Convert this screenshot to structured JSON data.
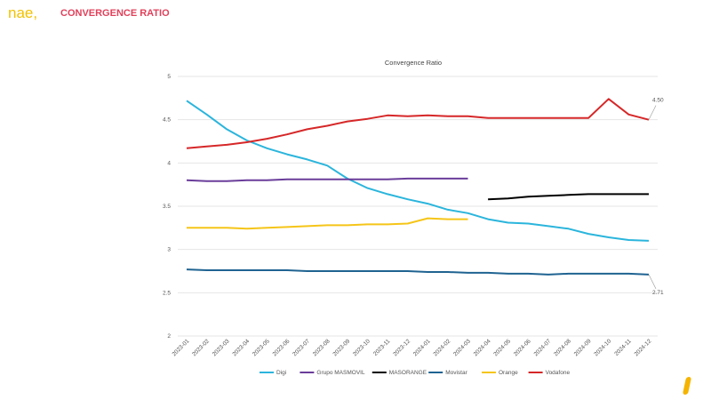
{
  "header": {
    "logo": "nae,",
    "title": "CONVERGENCE RATIO"
  },
  "chart_data": {
    "type": "line",
    "title": "Convergence Ratio",
    "xlabel": "",
    "ylabel": "",
    "ylim": [
      2,
      5
    ],
    "yticks": [
      "2",
      "2.5",
      "3",
      "3.5",
      "4",
      "4.5",
      "5"
    ],
    "grid": true,
    "legend": "bottom",
    "categories": [
      "2023-01",
      "2023-02",
      "2023-03",
      "2023-04",
      "2023-05",
      "2023-06",
      "2023-07",
      "2023-08",
      "2023-09",
      "2023-10",
      "2023-11",
      "2023-12",
      "2024-01",
      "2024-02",
      "2024-03",
      "2024-04",
      "2024-05",
      "2024-06",
      "2024-07",
      "2024-08",
      "2024-09",
      "2024-10",
      "2024-11",
      "2024-12"
    ],
    "series": [
      {
        "name": "Digi",
        "color": "#2bb5dc",
        "values": [
          4.72,
          4.56,
          4.39,
          4.26,
          4.17,
          4.1,
          4.04,
          3.97,
          3.82,
          3.71,
          3.64,
          3.58,
          3.53,
          3.46,
          3.42,
          3.35,
          3.31,
          3.3,
          3.27,
          3.24,
          3.18,
          3.14,
          3.11,
          3.1
        ]
      },
      {
        "name": "Grupo MASMOVIL",
        "color": "#6a3d9a",
        "values": [
          3.8,
          3.79,
          3.79,
          3.8,
          3.8,
          3.81,
          3.81,
          3.81,
          3.81,
          3.81,
          3.81,
          3.82,
          3.82,
          3.82,
          3.82,
          null,
          null,
          null,
          null,
          null,
          null,
          null,
          null,
          null
        ]
      },
      {
        "name": "MASORANGE",
        "color": "#000000",
        "values": [
          null,
          null,
          null,
          null,
          null,
          null,
          null,
          null,
          null,
          null,
          null,
          null,
          null,
          null,
          null,
          3.58,
          3.59,
          3.61,
          3.62,
          3.63,
          3.64,
          3.64,
          3.64,
          3.64
        ]
      },
      {
        "name": "Movistar",
        "color": "#1f6391",
        "values": [
          2.77,
          2.76,
          2.76,
          2.76,
          2.76,
          2.76,
          2.75,
          2.75,
          2.75,
          2.75,
          2.75,
          2.75,
          2.74,
          2.74,
          2.73,
          2.73,
          2.72,
          2.72,
          2.71,
          2.72,
          2.72,
          2.72,
          2.72,
          2.71
        ]
      },
      {
        "name": "Orange",
        "color": "#f5c518",
        "values": [
          3.25,
          3.25,
          3.25,
          3.24,
          3.25,
          3.26,
          3.27,
          3.28,
          3.28,
          3.29,
          3.29,
          3.3,
          3.36,
          3.35,
          3.35,
          null,
          null,
          null,
          null,
          null,
          null,
          null,
          null,
          null
        ]
      },
      {
        "name": "Vodafone",
        "color": "#d62728",
        "values": [
          4.17,
          4.19,
          4.21,
          4.24,
          4.28,
          4.33,
          4.39,
          4.43,
          4.48,
          4.51,
          4.55,
          4.54,
          4.55,
          4.54,
          4.54,
          4.52,
          4.52,
          4.52,
          4.52,
          4.52,
          4.52,
          4.74,
          4.56,
          4.5
        ]
      }
    ],
    "annotations": [
      {
        "series": "Vodafone",
        "x": "2024-12",
        "label": "4.50"
      },
      {
        "series": "Movistar",
        "x": "2024-12",
        "label": "2.71"
      }
    ]
  }
}
